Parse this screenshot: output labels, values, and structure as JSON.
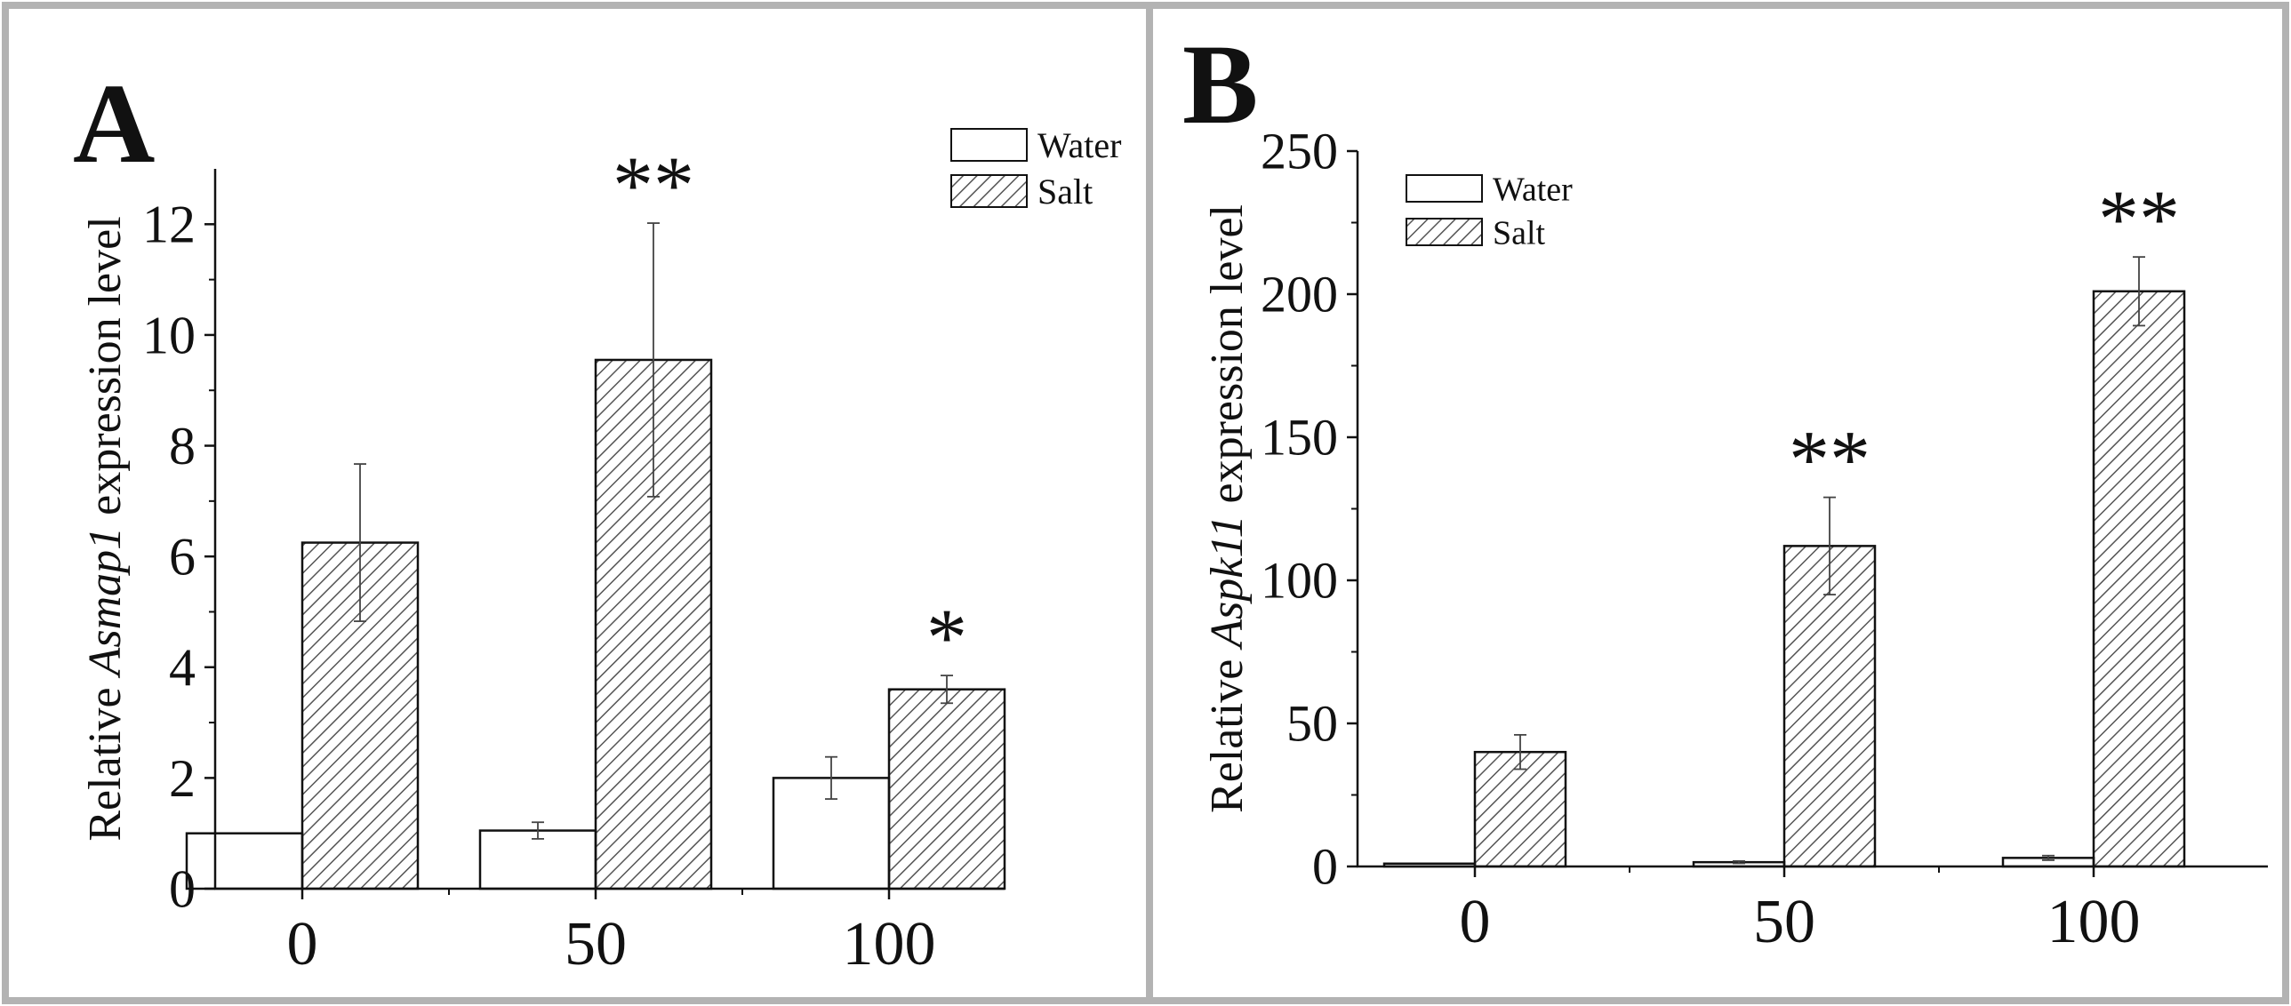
{
  "colors": {
    "frame": "#b3b3b3",
    "ink": "#111111",
    "water_fill": "#ffffff",
    "salt_hatch": "#555555"
  },
  "chart_data": [
    {
      "panel": "A",
      "type": "bar",
      "title": "",
      "xlabel": "",
      "ylabel_prefix": "Relative ",
      "ylabel_gene": "Asmap1",
      "ylabel_suffix": " expression level",
      "categories": [
        "0",
        "50",
        "100"
      ],
      "ylim": [
        0,
        13
      ],
      "yticks": [
        0,
        2,
        4,
        6,
        8,
        10,
        12
      ],
      "legend": {
        "placement": "top-right",
        "entries": [
          "Water",
          "Salt"
        ]
      },
      "series": [
        {
          "name": "Water",
          "values": [
            1.0,
            1.05,
            2.0
          ],
          "errors": [
            0.0,
            0.15,
            0.38
          ]
        },
        {
          "name": "Salt",
          "values": [
            6.25,
            9.55,
            3.6
          ],
          "errors": [
            1.42,
            2.47,
            0.25
          ]
        }
      ],
      "annotations": [
        {
          "category": "0",
          "series": "Salt",
          "text": ""
        },
        {
          "category": "50",
          "series": "Salt",
          "text": "**"
        },
        {
          "category": "100",
          "series": "Salt",
          "text": "*"
        }
      ]
    },
    {
      "panel": "B",
      "type": "bar",
      "title": "",
      "xlabel": "",
      "ylabel_prefix": "Relative ",
      "ylabel_gene": "Aspk11",
      "ylabel_suffix": " expression level",
      "categories": [
        "0",
        "50",
        "100"
      ],
      "ylim": [
        0,
        250
      ],
      "yticks": [
        0,
        50,
        100,
        150,
        200,
        250
      ],
      "legend": {
        "placement": "top-left",
        "entries": [
          "Water",
          "Salt"
        ]
      },
      "series": [
        {
          "name": "Water",
          "values": [
            1.0,
            1.5,
            3.0
          ],
          "errors": [
            0.0,
            0.4,
            0.8
          ]
        },
        {
          "name": "Salt",
          "values": [
            40,
            112,
            201
          ],
          "errors": [
            6,
            17,
            12
          ]
        }
      ],
      "annotations": [
        {
          "category": "0",
          "series": "Salt",
          "text": ""
        },
        {
          "category": "50",
          "series": "Salt",
          "text": "**"
        },
        {
          "category": "100",
          "series": "Salt",
          "text": "**"
        }
      ]
    }
  ],
  "panels": [
    {
      "letter": "A"
    },
    {
      "letter": "B"
    }
  ]
}
